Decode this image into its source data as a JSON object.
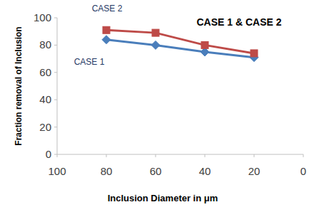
{
  "chart_data": {
    "type": "line",
    "title": "CASE 1 & CASE 2",
    "x_label": "Inclusion Diameter in μm",
    "y_label": "Fraction removal of Inclusion",
    "x": [
      80,
      60,
      40,
      20
    ],
    "series": [
      {
        "name": "CASE 1",
        "color": "#4a7ebb",
        "marker": "diamond",
        "values": [
          84,
          80,
          75,
          71
        ]
      },
      {
        "name": "CASE 2",
        "color": "#be4b48",
        "marker": "square",
        "values": [
          91,
          89,
          80,
          74
        ]
      }
    ],
    "xlim": [
      100,
      0
    ],
    "xticks": [
      100,
      80,
      60,
      40,
      20,
      0
    ],
    "ylim": [
      0,
      100
    ],
    "yticks": [
      0,
      20,
      40,
      60,
      80,
      100
    ],
    "grid": false
  }
}
